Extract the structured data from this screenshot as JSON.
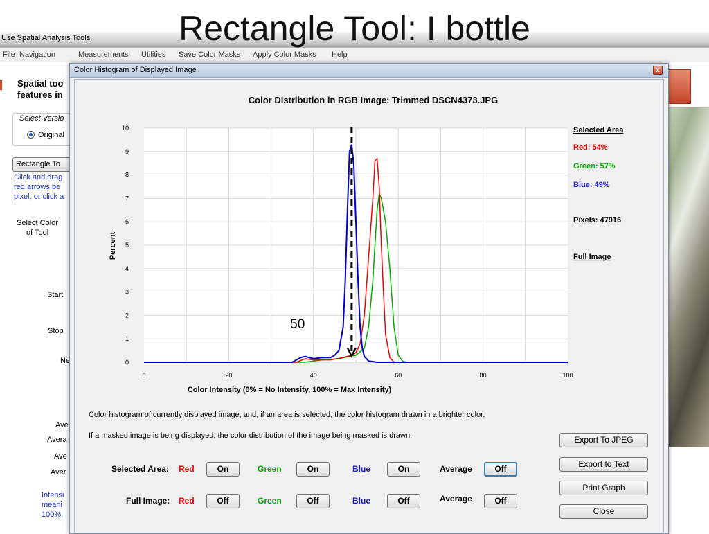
{
  "slide_title": "Rectangle Tool: I bottle",
  "app": {
    "window_title": "Use Spatial Analysis Tools",
    "menu": [
      "File",
      "Navigation",
      "Measurements",
      "Utilities",
      "Save Color Masks",
      "Apply Color Masks",
      "Help"
    ],
    "left_panel": {
      "heading_line1": "Spatial too",
      "heading_line2": "features in",
      "select_version": "Select Versio",
      "radio_label": "Original",
      "rectangle_button": "Rectangle To",
      "help_line1": "Click and drag",
      "help_line2": "red arrows be",
      "help_line3": "pixel, or click a",
      "select_color_line1": "Select Color",
      "select_color_line2": "of Tool",
      "start": "Start",
      "stop": "Stop",
      "ne": "Ne",
      "ave1": "Ave",
      "avera": "Avera",
      "ave2": "Ave",
      "aver": "Aver",
      "intens_line1": "Intensi",
      "intens_line2": "meani",
      "intens_line3": "100%,"
    }
  },
  "dialog": {
    "title": "Color Histogram of Displayed Image",
    "close_glyph": "x",
    "description_line1": "Color histogram of currently displayed image, and, if an area is selected, the color histogram drawn in a brighter color.",
    "description_line2": "If a masked image is being displayed, the color distribution of the image being masked is drawn.",
    "selected_area_label": "Selected Area:",
    "full_image_label": "Full Image:",
    "red_label": "Red",
    "green_label": "Green",
    "blue_label": "Blue",
    "average_label": "Average",
    "selected_buttons": {
      "red": "On",
      "green": "On",
      "blue": "On",
      "average": "Off"
    },
    "full_buttons": {
      "red": "Off",
      "green": "Off",
      "blue": "Off",
      "average": "Off"
    },
    "export_jpeg": "Export To JPEG",
    "export_text": "Export to Text",
    "print_graph": "Print Graph",
    "close": "Close"
  },
  "chart_data": {
    "type": "line",
    "title": "Color Distribution in RGB Image: Trimmed DSCN4373.JPG",
    "xlabel": "Color Intensity (0% = No Intensity, 100% = Max Intensity)",
    "ylabel": "Percent",
    "xlim": [
      0,
      100
    ],
    "ylim": [
      0,
      10
    ],
    "x_ticks": [
      0,
      20,
      40,
      60,
      80,
      100
    ],
    "y_ticks": [
      0,
      1,
      2,
      3,
      4,
      5,
      6,
      7,
      8,
      9,
      10
    ],
    "grid": true,
    "series": [
      {
        "name": "Blue",
        "color": "#0000cc",
        "x": [
          0,
          35,
          37,
          38,
          40,
          42,
          44,
          45,
          46,
          47,
          47.5,
          48,
          48.5,
          49,
          49.5,
          50,
          50.5,
          51,
          51.5,
          52,
          53,
          55,
          100
        ],
        "y": [
          0,
          0,
          0.2,
          0.25,
          0.15,
          0.2,
          0.2,
          0.3,
          0.5,
          1.5,
          3.5,
          6.5,
          9.0,
          9.3,
          8.5,
          6.0,
          3.5,
          1.5,
          0.6,
          0.25,
          0.05,
          0,
          0
        ]
      },
      {
        "name": "Red",
        "color": "#ee0000",
        "x": [
          0,
          36,
          38,
          40,
          44,
          47,
          49,
          50,
          51,
          52,
          53,
          54,
          54.5,
          55,
          55.5,
          56,
          56.5,
          57,
          58,
          59,
          100
        ],
        "y": [
          0,
          0,
          0.15,
          0.1,
          0.1,
          0.2,
          0.3,
          0.4,
          0.8,
          2.0,
          4.5,
          7.0,
          8.6,
          8.7,
          7.5,
          5.0,
          3.0,
          1.2,
          0.2,
          0,
          0
        ]
      },
      {
        "name": "Green",
        "color": "#00aa00",
        "x": [
          0,
          38,
          42,
          46,
          50,
          52,
          53,
          54,
          55,
          55.5,
          56,
          56.5,
          57,
          58,
          59,
          60,
          61,
          62,
          70,
          100
        ],
        "y": [
          0,
          0,
          0.1,
          0.15,
          0.3,
          0.6,
          1.5,
          3.5,
          6.5,
          7.2,
          7.0,
          6.5,
          6.0,
          4.0,
          1.5,
          0.3,
          0.05,
          0,
          0,
          0
        ]
      }
    ],
    "legend": {
      "selected_area": "Selected Area",
      "red": "Red: 54%",
      "green": "Green: 57%",
      "blue": "Blue: 49%",
      "pixels": "Pixels: 47916",
      "full_image": "Full Image"
    },
    "annotation": {
      "label": "50",
      "x": 49,
      "from_y": 10,
      "to_y": 0.2
    }
  }
}
